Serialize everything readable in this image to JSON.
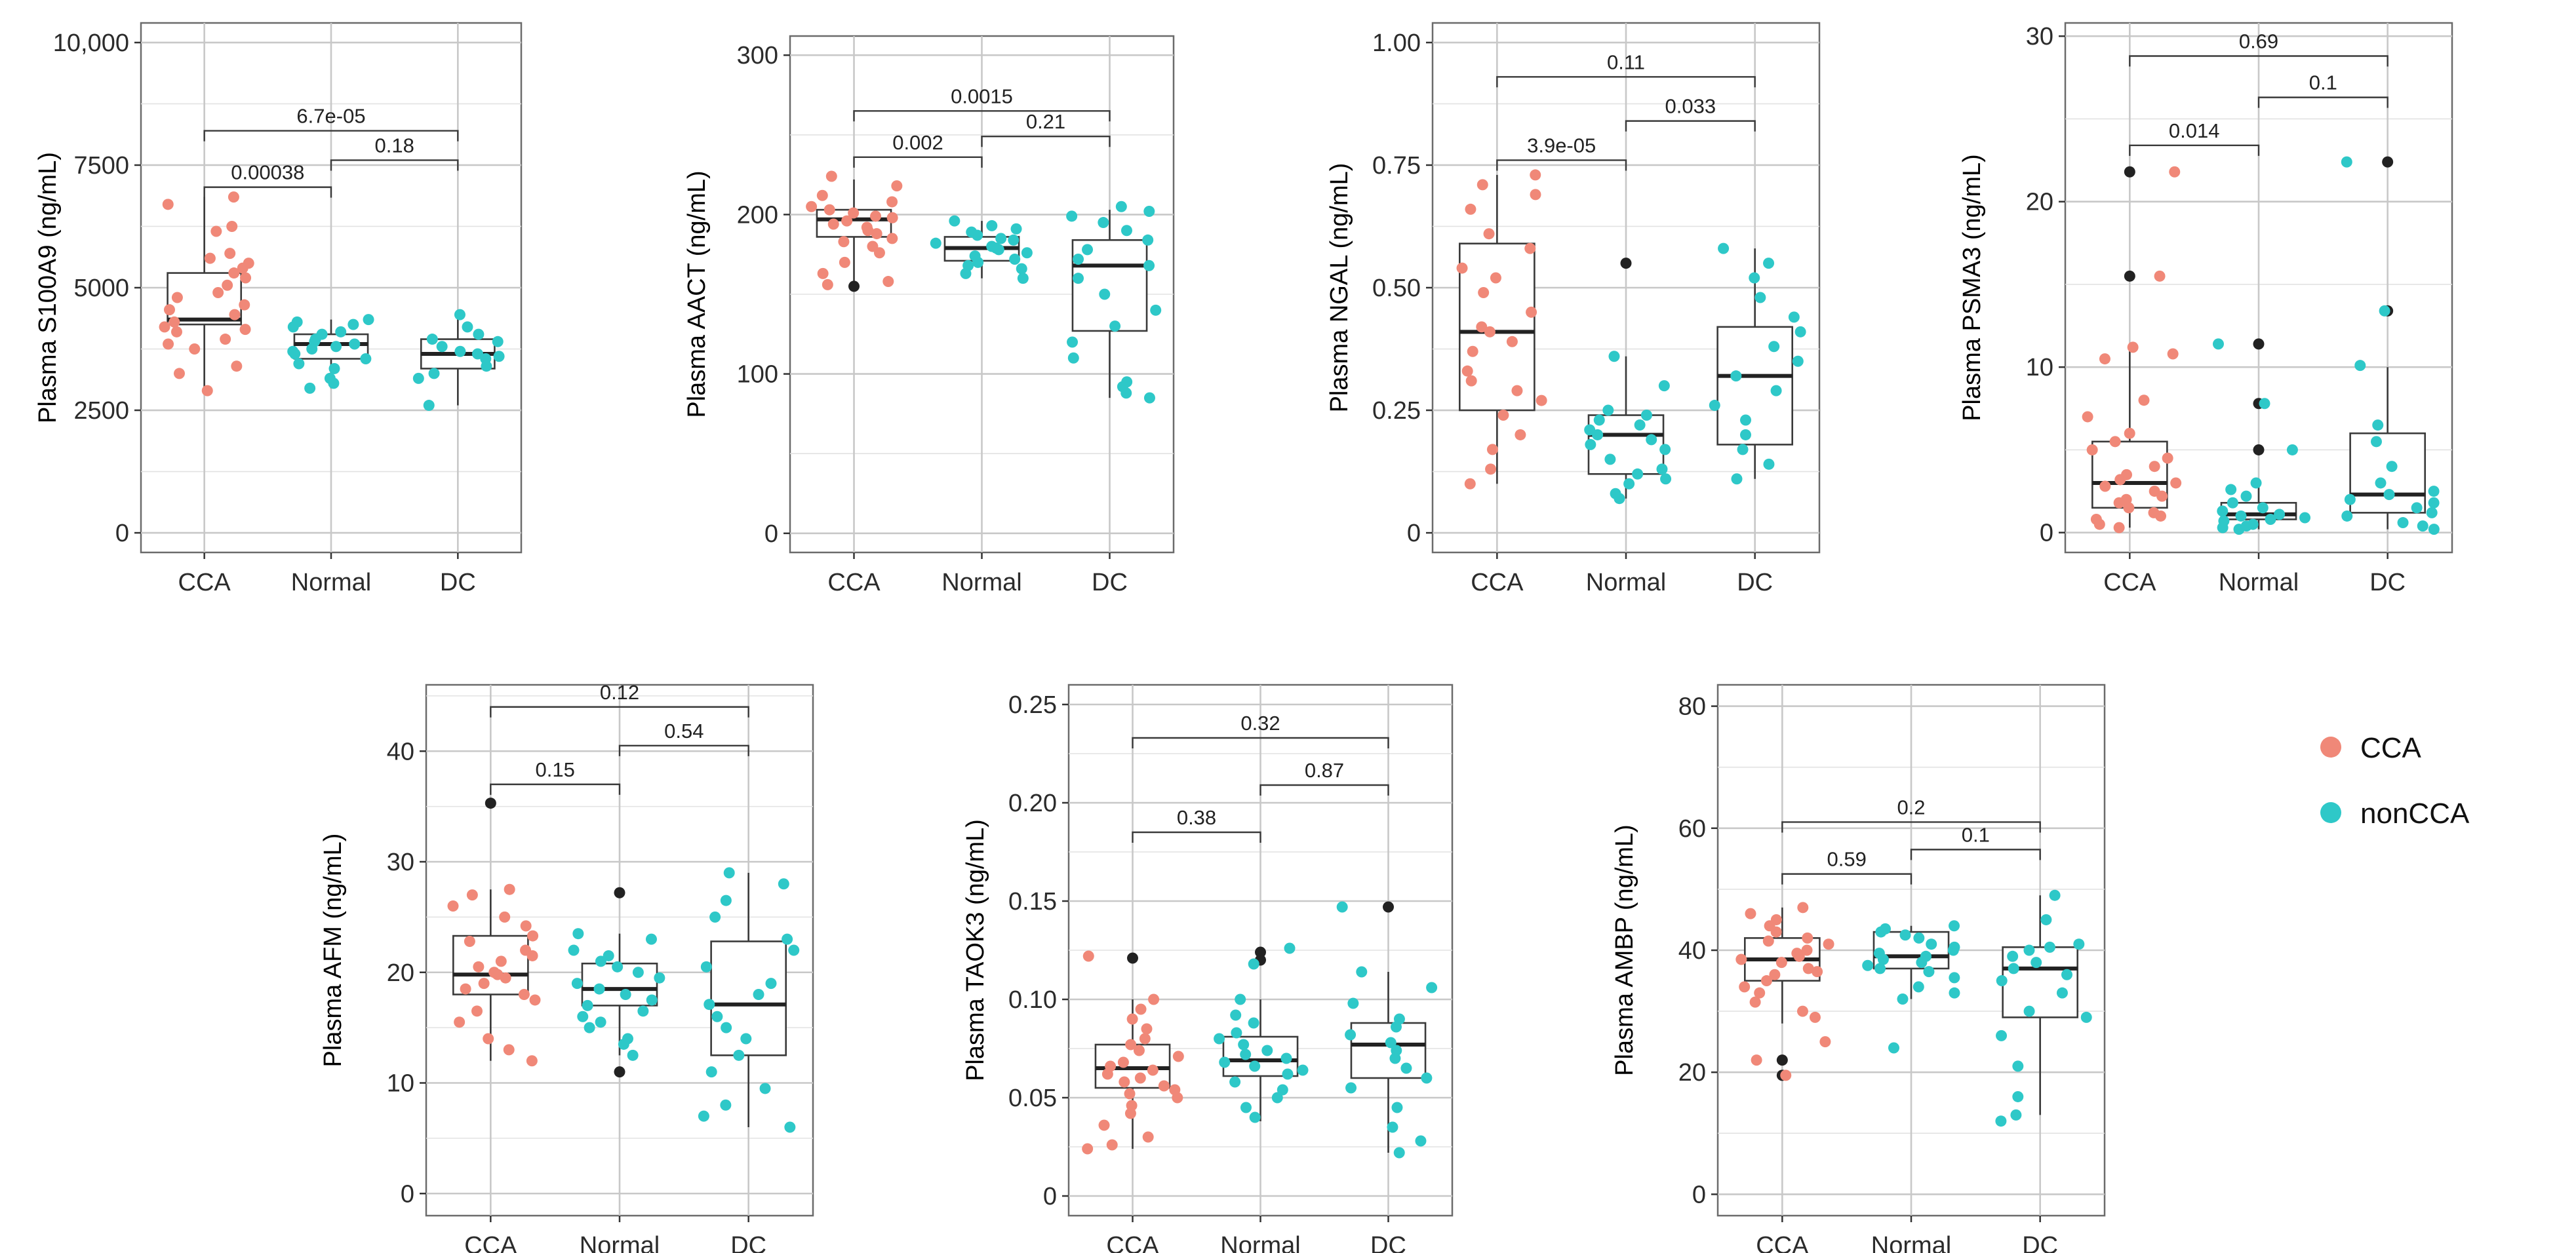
{
  "legend": {
    "entries": [
      {
        "label": "CCA",
        "color": "#F08878"
      },
      {
        "label": "nonCCA",
        "color": "#2EC8C8"
      }
    ]
  },
  "colors": {
    "CCA": "#F08878",
    "nonCCA": "#2EC8C8",
    "outlier": "#222222"
  },
  "chart_data": [
    {
      "type": "box",
      "ylabel": "Plasma S100A9 (ng/mL)",
      "ylim": [
        -400,
        10400
      ],
      "yticks": [
        0,
        2500,
        5000,
        7500,
        10000
      ],
      "ytick_labels": [
        "0",
        "2500",
        "5000",
        "7500",
        "10,000"
      ],
      "categories": [
        "CCA",
        "Normal",
        "DC"
      ],
      "groups": [
        {
          "name": "CCA",
          "class": "CCA",
          "q1": 4250,
          "median": 4350,
          "q3": 5300,
          "whisker_low": 2900,
          "whisker_high": 6850,
          "points": [
            6850,
            6700,
            6250,
            6150,
            5700,
            5600,
            5500,
            5400,
            5300,
            5200,
            5050,
            4900,
            4800,
            4650,
            4550,
            4450,
            4300,
            4200,
            4150,
            4100,
            3950,
            3850,
            3750,
            3400,
            3250,
            2900
          ],
          "outliers": []
        },
        {
          "name": "Normal",
          "class": "nonCCA",
          "q1": 3550,
          "median": 3850,
          "q3": 4050,
          "whisker_low": 2950,
          "whisker_high": 4350,
          "points": [
            4350,
            4300,
            4250,
            4200,
            4100,
            4050,
            3950,
            3900,
            3850,
            3800,
            3750,
            3700,
            3650,
            3550,
            3450,
            3350,
            3150,
            3050,
            2950
          ],
          "outliers": []
        },
        {
          "name": "DC",
          "class": "nonCCA",
          "q1": 3350,
          "median": 3650,
          "q3": 3950,
          "whisker_low": 2600,
          "whisker_high": 4450,
          "points": [
            4450,
            4200,
            4050,
            3950,
            3900,
            3800,
            3700,
            3650,
            3600,
            3550,
            3400,
            3250,
            3150,
            2600
          ],
          "outliers": []
        }
      ],
      "comparisons": [
        {
          "from": 0,
          "to": 1,
          "y": 7050,
          "label": "0.00038"
        },
        {
          "from": 1,
          "to": 2,
          "y": 7600,
          "label": "0.18"
        },
        {
          "from": 0,
          "to": 2,
          "y": 8200,
          "label": "6.7e-05"
        }
      ]
    },
    {
      "type": "box",
      "ylabel": "Plasma AACT (ng/mL)",
      "ylim": [
        -12,
        312
      ],
      "yticks": [
        0,
        100,
        200,
        300
      ],
      "ytick_labels": [
        "0",
        "100",
        "200",
        "300"
      ],
      "categories": [
        "CCA",
        "Normal",
        "DC"
      ],
      "groups": [
        {
          "name": "CCA",
          "class": "CCA",
          "q1": 186,
          "median": 197,
          "q3": 203,
          "whisker_low": 155,
          "whisker_high": 222,
          "points": [
            224,
            218,
            212,
            208,
            205,
            203,
            201,
            199,
            198,
            196,
            194,
            192,
            190,
            188,
            185,
            183,
            180,
            176,
            170,
            163,
            158,
            156
          ],
          "outliers": [
            155
          ]
        },
        {
          "name": "Normal",
          "class": "nonCCA",
          "q1": 171,
          "median": 179,
          "q3": 186,
          "whisker_low": 160,
          "whisker_high": 196,
          "points": [
            196,
            193,
            191,
            189,
            187,
            185,
            184,
            182,
            180,
            179,
            178,
            176,
            174,
            172,
            170,
            168,
            166,
            163,
            160
          ],
          "outliers": []
        },
        {
          "name": "DC",
          "class": "nonCCA",
          "q1": 127,
          "median": 168,
          "q3": 184,
          "whisker_low": 85,
          "whisker_high": 203,
          "points": [
            205,
            202,
            199,
            195,
            190,
            184,
            178,
            172,
            168,
            160,
            150,
            140,
            130,
            120,
            110,
            95,
            92,
            88,
            85
          ],
          "outliers": []
        }
      ],
      "comparisons": [
        {
          "from": 0,
          "to": 1,
          "y": 236,
          "label": "0.002"
        },
        {
          "from": 1,
          "to": 2,
          "y": 249,
          "label": "0.21"
        },
        {
          "from": 0,
          "to": 2,
          "y": 265,
          "label": "0.0015"
        }
      ]
    },
    {
      "type": "box",
      "ylabel": "Plasma NGAL (ng/mL)",
      "ylim": [
        -0.04,
        1.04
      ],
      "yticks": [
        0,
        0.25,
        0.5,
        0.75,
        1.0
      ],
      "ytick_labels": [
        "0",
        "0.25",
        "0.50",
        "0.75",
        "1.00"
      ],
      "categories": [
        "CCA",
        "Normal",
        "DC"
      ],
      "groups": [
        {
          "name": "CCA",
          "class": "CCA",
          "q1": 0.25,
          "median": 0.41,
          "q3": 0.59,
          "whisker_low": 0.1,
          "whisker_high": 0.73,
          "points": [
            0.73,
            0.71,
            0.69,
            0.66,
            0.61,
            0.58,
            0.54,
            0.52,
            0.49,
            0.45,
            0.42,
            0.41,
            0.39,
            0.37,
            0.33,
            0.31,
            0.29,
            0.27,
            0.24,
            0.2,
            0.17,
            0.13,
            0.1
          ],
          "outliers": []
        },
        {
          "name": "Normal",
          "class": "nonCCA",
          "q1": 0.12,
          "median": 0.2,
          "q3": 0.24,
          "whisker_low": 0.07,
          "whisker_high": 0.36,
          "points": [
            0.36,
            0.3,
            0.25,
            0.24,
            0.23,
            0.22,
            0.21,
            0.2,
            0.19,
            0.18,
            0.17,
            0.15,
            0.13,
            0.12,
            0.11,
            0.1,
            0.08,
            0.07
          ],
          "outliers": [
            0.55
          ]
        },
        {
          "name": "DC",
          "class": "nonCCA",
          "q1": 0.18,
          "median": 0.32,
          "q3": 0.42,
          "whisker_low": 0.11,
          "whisker_high": 0.58,
          "points": [
            0.58,
            0.55,
            0.52,
            0.48,
            0.44,
            0.41,
            0.38,
            0.35,
            0.32,
            0.29,
            0.26,
            0.23,
            0.2,
            0.17,
            0.14,
            0.11
          ],
          "outliers": []
        }
      ],
      "comparisons": [
        {
          "from": 0,
          "to": 1,
          "y": 0.76,
          "label": "3.9e-05"
        },
        {
          "from": 1,
          "to": 2,
          "y": 0.84,
          "label": "0.033"
        },
        {
          "from": 0,
          "to": 2,
          "y": 0.93,
          "label": "0.11"
        }
      ]
    },
    {
      "type": "box",
      "ylabel": "Plasma PSMA3 (ng/mL)",
      "ylim": [
        -1.2,
        30.8
      ],
      "yticks": [
        0,
        10,
        20,
        30
      ],
      "ytick_labels": [
        "0",
        "10",
        "20",
        "30"
      ],
      "categories": [
        "CCA",
        "Normal",
        "DC"
      ],
      "groups": [
        {
          "name": "CCA",
          "class": "CCA",
          "q1": 1.5,
          "median": 3.0,
          "q3": 5.5,
          "whisker_low": 0.3,
          "whisker_high": 11.0,
          "points": [
            21.8,
            15.5,
            11.2,
            10.8,
            10.5,
            8.0,
            7.0,
            6.0,
            5.5,
            5.0,
            4.5,
            4.0,
            3.5,
            3.2,
            3.0,
            2.8,
            2.5,
            2.2,
            2.0,
            1.8,
            1.5,
            1.2,
            1.0,
            0.8,
            0.5,
            0.3
          ],
          "outliers": [
            21.8,
            15.5
          ]
        },
        {
          "name": "Normal",
          "class": "nonCCA",
          "q1": 0.8,
          "median": 1.1,
          "q3": 1.8,
          "whisker_low": 0.2,
          "whisker_high": 3.0,
          "points": [
            11.4,
            7.8,
            5.0,
            3.0,
            2.6,
            2.2,
            1.8,
            1.5,
            1.3,
            1.1,
            1.0,
            0.9,
            0.8,
            0.7,
            0.5,
            0.4,
            0.3,
            0.2
          ],
          "outliers": [
            11.4,
            7.8,
            5.0
          ]
        },
        {
          "name": "DC",
          "class": "nonCCA",
          "q1": 1.2,
          "median": 2.3,
          "q3": 6.0,
          "whisker_low": 0.2,
          "whisker_high": 10.0,
          "points": [
            22.4,
            13.4,
            10.1,
            6.5,
            5.5,
            4.0,
            3.0,
            2.5,
            2.3,
            2.0,
            1.8,
            1.5,
            1.2,
            1.0,
            0.6,
            0.4,
            0.2
          ],
          "outliers": [
            22.4,
            13.4
          ]
        }
      ],
      "comparisons": [
        {
          "from": 0,
          "to": 1,
          "y": 23.4,
          "label": "0.014"
        },
        {
          "from": 1,
          "to": 2,
          "y": 26.3,
          "label": "0.1"
        },
        {
          "from": 0,
          "to": 2,
          "y": 28.8,
          "label": "0.69"
        }
      ]
    },
    {
      "type": "box",
      "ylabel": "Plasma AFM (ng/mL)",
      "ylim": [
        -2,
        46
      ],
      "yticks": [
        0,
        10,
        20,
        30,
        40
      ],
      "ytick_labels": [
        "0",
        "10",
        "20",
        "30",
        "40"
      ],
      "categories": [
        "CCA",
        "Normal",
        "DC"
      ],
      "groups": [
        {
          "name": "CCA",
          "class": "CCA",
          "q1": 18,
          "median": 19.8,
          "q3": 23.3,
          "whisker_low": 12,
          "whisker_high": 27.5,
          "points": [
            27.5,
            27.0,
            26.0,
            25.0,
            24.2,
            23.3,
            22.8,
            22.0,
            21.5,
            21.0,
            20.5,
            20.0,
            19.8,
            19.5,
            19.0,
            18.5,
            18.0,
            17.5,
            16.5,
            15.5,
            14.0,
            13.0,
            12.0
          ],
          "outliers": [
            35.3
          ]
        },
        {
          "name": "Normal",
          "class": "nonCCA",
          "q1": 17,
          "median": 18.5,
          "q3": 20.8,
          "whisker_low": 12.5,
          "whisker_high": 23.5,
          "points": [
            23.5,
            23.0,
            22.0,
            21.5,
            21.0,
            20.5,
            20.0,
            19.5,
            19.0,
            18.5,
            18.0,
            17.5,
            17.0,
            16.5,
            16.0,
            15.5,
            15.0,
            14.0,
            13.5,
            12.5
          ],
          "outliers": [
            27.2,
            11.0
          ]
        },
        {
          "name": "DC",
          "class": "nonCCA",
          "q1": 12.5,
          "median": 17.1,
          "q3": 22.8,
          "whisker_low": 6,
          "whisker_high": 29,
          "points": [
            29.0,
            28.0,
            26.5,
            25.0,
            23.0,
            22.0,
            20.5,
            19.0,
            18.0,
            17.1,
            16.0,
            15.0,
            14.0,
            12.5,
            11.0,
            9.5,
            8.0,
            7.0,
            6.0
          ],
          "outliers": []
        }
      ],
      "comparisons": [
        {
          "from": 0,
          "to": 1,
          "y": 37,
          "label": "0.15"
        },
        {
          "from": 1,
          "to": 2,
          "y": 40.5,
          "label": "0.54"
        },
        {
          "from": 0,
          "to": 2,
          "y": 44,
          "label": "0.12"
        }
      ]
    },
    {
      "type": "box",
      "ylabel": "Plasma TAOK3 (ng/mL)",
      "ylim": [
        -0.01,
        0.26
      ],
      "yticks": [
        0,
        0.05,
        0.1,
        0.15,
        0.2,
        0.25
      ],
      "ytick_labels": [
        "0",
        "0.05",
        "0.10",
        "0.15",
        "0.20",
        "0.25"
      ],
      "categories": [
        "CCA",
        "Normal",
        "DC"
      ],
      "groups": [
        {
          "name": "CCA",
          "class": "CCA",
          "q1": 0.055,
          "median": 0.065,
          "q3": 0.077,
          "whisker_low": 0.024,
          "whisker_high": 0.1,
          "points": [
            0.122,
            0.1,
            0.095,
            0.09,
            0.085,
            0.08,
            0.077,
            0.074,
            0.071,
            0.068,
            0.066,
            0.064,
            0.062,
            0.06,
            0.058,
            0.056,
            0.054,
            0.052,
            0.05,
            0.046,
            0.042,
            0.036,
            0.03,
            0.026,
            0.024
          ],
          "outliers": [
            0.121
          ]
        },
        {
          "name": "Normal",
          "class": "nonCCA",
          "q1": 0.061,
          "median": 0.069,
          "q3": 0.081,
          "whisker_low": 0.038,
          "whisker_high": 0.1,
          "points": [
            0.126,
            0.118,
            0.1,
            0.092,
            0.088,
            0.083,
            0.08,
            0.077,
            0.074,
            0.072,
            0.07,
            0.068,
            0.066,
            0.064,
            0.062,
            0.058,
            0.054,
            0.05,
            0.045,
            0.04
          ],
          "outliers": [
            0.124,
            0.12
          ]
        },
        {
          "name": "DC",
          "class": "nonCCA",
          "q1": 0.06,
          "median": 0.077,
          "q3": 0.088,
          "whisker_low": 0.022,
          "whisker_high": 0.114,
          "points": [
            0.147,
            0.114,
            0.106,
            0.098,
            0.09,
            0.086,
            0.082,
            0.078,
            0.074,
            0.07,
            0.065,
            0.06,
            0.055,
            0.045,
            0.035,
            0.028,
            0.022
          ],
          "outliers": [
            0.147
          ]
        }
      ],
      "comparisons": [
        {
          "from": 0,
          "to": 1,
          "y": 0.185,
          "label": "0.38"
        },
        {
          "from": 1,
          "to": 2,
          "y": 0.209,
          "label": "0.87"
        },
        {
          "from": 0,
          "to": 2,
          "y": 0.233,
          "label": "0.32"
        }
      ]
    },
    {
      "type": "box",
      "ylabel": "Plasma AMBP (ng/mL)",
      "ylim": [
        -3.5,
        83.5
      ],
      "yticks": [
        0,
        20,
        40,
        60,
        80
      ],
      "ytick_labels": [
        "0",
        "20",
        "40",
        "60",
        "80"
      ],
      "categories": [
        "CCA",
        "Normal",
        "DC"
      ],
      "groups": [
        {
          "name": "CCA",
          "class": "CCA",
          "q1": 35,
          "median": 38.5,
          "q3": 42,
          "whisker_low": 28,
          "whisker_high": 47,
          "points": [
            47,
            46,
            45,
            44,
            43,
            42,
            41.5,
            41,
            40,
            39.5,
            39,
            38.5,
            38,
            37,
            36.5,
            36,
            35,
            34,
            33,
            31.5,
            30,
            29,
            25,
            22,
            19.5
          ],
          "outliers": [
            22,
            19.5
          ]
        },
        {
          "name": "Normal",
          "class": "nonCCA",
          "q1": 37,
          "median": 39,
          "q3": 43,
          "whisker_low": 32,
          "whisker_high": 44,
          "points": [
            44,
            43.5,
            43,
            42.5,
            42,
            41,
            40.5,
            40,
            39.5,
            39,
            38.5,
            38,
            37.5,
            37,
            36.5,
            35.5,
            34,
            33,
            32,
            24
          ],
          "outliers": []
        },
        {
          "name": "DC",
          "class": "nonCCA",
          "q1": 29,
          "median": 37,
          "q3": 40.5,
          "whisker_low": 13,
          "whisker_high": 49,
          "points": [
            49,
            45,
            41,
            40.5,
            40,
            39,
            38,
            37,
            36,
            35,
            33,
            30,
            29,
            26,
            21,
            16,
            13,
            12
          ],
          "outliers": []
        }
      ],
      "comparisons": [
        {
          "from": 0,
          "to": 1,
          "y": 52.5,
          "label": "0.59"
        },
        {
          "from": 1,
          "to": 2,
          "y": 56.5,
          "label": "0.1"
        },
        {
          "from": 0,
          "to": 2,
          "y": 61,
          "label": "0.2"
        }
      ]
    }
  ]
}
